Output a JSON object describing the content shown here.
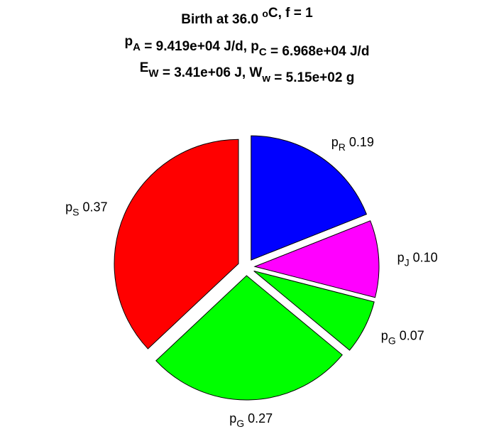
{
  "chart_data": {
    "type": "pie",
    "title_lines": [
      {
        "parts": [
          {
            "t": "Birth at 36.0 "
          },
          {
            "t": "o",
            "sup": true
          },
          {
            "t": "C, f = 1"
          }
        ]
      },
      {
        "parts": [
          {
            "t": "p"
          },
          {
            "t": "A",
            "sub": true
          },
          {
            "t": " = 9.419e+04 J/d, p"
          },
          {
            "t": "C",
            "sub": true
          },
          {
            "t": " = 6.968e+04 J/d"
          }
        ]
      },
      {
        "parts": [
          {
            "t": "E"
          },
          {
            "t": "W",
            "sub": true
          },
          {
            "t": " = 3.41e+06 J, W"
          },
          {
            "t": "w",
            "sub": true
          },
          {
            "t": " = 5.15e+02 g"
          }
        ]
      }
    ],
    "slices": [
      {
        "name": "p",
        "sub": "R",
        "value": 0.19,
        "label": "0.19",
        "color": "#0000ff",
        "exploded": true
      },
      {
        "name": "p",
        "sub": "J",
        "value": 0.1,
        "label": "0.10",
        "color": "#ff00ff",
        "exploded": true
      },
      {
        "name": "p",
        "sub": "G",
        "value": 0.07,
        "label": "0.07",
        "color": "#00ff00",
        "exploded": true
      },
      {
        "name": "p",
        "sub": "G",
        "value": 0.27,
        "label": "0.27",
        "color": "#00ff00",
        "exploded": true
      },
      {
        "name": "p",
        "sub": "S",
        "value": 0.37,
        "label": "0.37",
        "color": "#ff0000",
        "exploded": true
      }
    ],
    "start_angle_deg": 0,
    "direction": "clockwise"
  }
}
